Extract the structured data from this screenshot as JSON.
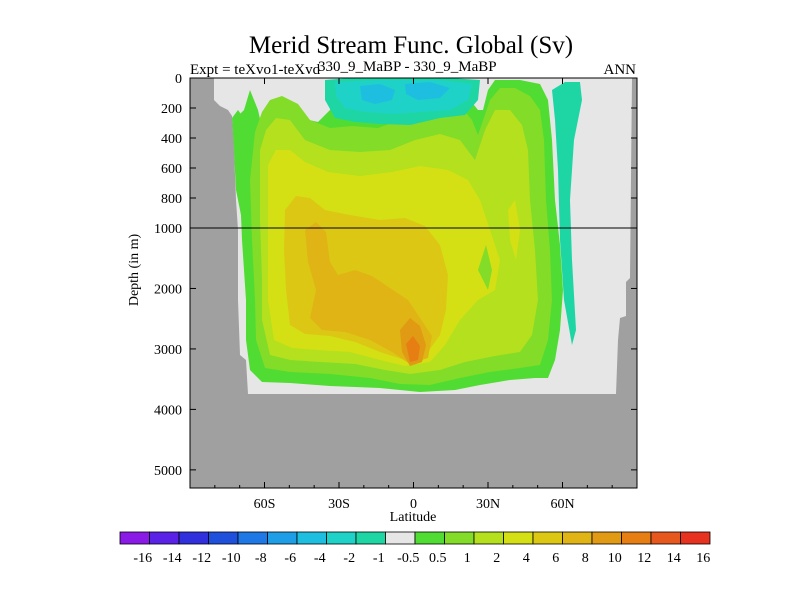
{
  "chart_data": {
    "type": "heatmap",
    "title": "Merid Stream Func. Global (Sv)",
    "subtitle_left": "Expt = teXvo1-teXvd",
    "subtitle_mid": "330_9_MaBP - 330_9_MaBP",
    "subtitle_right": "ANN",
    "xlabel": "Latitude",
    "ylabel": "Depth (in m)",
    "x_ticks": [
      "60S",
      "30S",
      "0",
      "30N",
      "60N"
    ],
    "x_tick_values": [
      -60,
      -30,
      0,
      30,
      60
    ],
    "xlim": [
      -90,
      90
    ],
    "y_ticks_upper": [
      "0",
      "200",
      "400",
      "600",
      "800",
      "1000"
    ],
    "y_tick_values_upper": [
      0,
      200,
      400,
      600,
      800,
      1000
    ],
    "y_ticks_lower": [
      "2000",
      "3000",
      "4000",
      "5000"
    ],
    "y_tick_values_lower": [
      2000,
      3000,
      4000,
      5000
    ],
    "ylim": [
      0,
      5300
    ],
    "y_scale": "split at 1000 m (upper 0-1000 m stretched, lower 1000-5300 m)",
    "colorbar": {
      "labels": [
        "-16",
        "-14",
        "-12",
        "-10",
        "-8",
        "-6",
        "-4",
        "-2",
        "-1",
        "-0.5",
        "0.5",
        "1",
        "2",
        "4",
        "6",
        "8",
        "10",
        "12",
        "14",
        "16"
      ],
      "colors": [
        "#8a1ae6",
        "#5a22e6",
        "#3030dc",
        "#1e50dc",
        "#1e78e6",
        "#1e9ee6",
        "#1ebee0",
        "#1ed2c8",
        "#1ed6a4",
        "#e6e6e6",
        "#50dc32",
        "#82dc28",
        "#b4e01e",
        "#d4e014",
        "#dcc814",
        "#e0b414",
        "#e09a14",
        "#e67e14",
        "#e6581e",
        "#e6321e"
      ]
    },
    "regions": [
      {
        "level": "0.5",
        "desc": "weak positive background cell"
      },
      {
        "level": "1",
        "desc": "main positive overturning cell"
      },
      {
        "level": "2",
        "desc": "interior positive cell"
      },
      {
        "level": "4",
        "desc": "core of positive cell"
      },
      {
        "level": "6",
        "desc": "inner core"
      },
      {
        "level": "8",
        "desc": "maximum near equator around 3000 m"
      },
      {
        "level": "-1",
        "desc": "negative cell near surface, 30S-20N"
      },
      {
        "level": "-2",
        "desc": "negative core near surface at equator"
      }
    ],
    "masked_land": "gray topography",
    "grid": false
  }
}
